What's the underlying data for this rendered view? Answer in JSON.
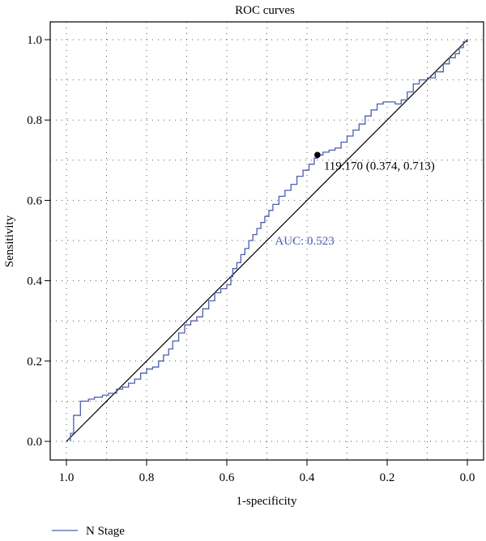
{
  "chart_data": {
    "type": "line",
    "title": "ROC curves",
    "xlabel": "1-specificity",
    "ylabel": "Sensitivity",
    "xlim": [
      1.0,
      0.0
    ],
    "ylim": [
      0.0,
      1.0
    ],
    "x_reversed": true,
    "grid": true,
    "x_ticks": [
      1.0,
      0.8,
      0.6,
      0.4,
      0.2,
      0.0
    ],
    "x_tick_labels": [
      "1.0",
      "0.8",
      "0.6",
      "0.4",
      "0.2",
      "0.0"
    ],
    "y_ticks": [
      0.0,
      0.2,
      0.4,
      0.6,
      0.8,
      1.0
    ],
    "y_tick_labels": [
      "0.0",
      "0.2",
      "0.4",
      "0.6",
      "0.8",
      "1.0"
    ],
    "legend": {
      "position": "bottom-left",
      "entries": [
        {
          "label": "N Stage",
          "color": "#4a5fae"
        }
      ]
    },
    "series": [
      {
        "name": "N Stage",
        "color": "#4a5fae",
        "x": [
          0.99,
          0.99,
          0.982,
          0.982,
          0.965,
          0.965,
          0.945,
          0.93,
          0.91,
          0.895,
          0.875,
          0.86,
          0.845,
          0.83,
          0.815,
          0.8,
          0.785,
          0.77,
          0.758,
          0.745,
          0.735,
          0.72,
          0.705,
          0.69,
          0.675,
          0.66,
          0.645,
          0.63,
          0.615,
          0.6,
          0.59,
          0.585,
          0.575,
          0.565,
          0.555,
          0.545,
          0.535,
          0.525,
          0.515,
          0.505,
          0.495,
          0.485,
          0.47,
          0.455,
          0.44,
          0.425,
          0.41,
          0.395,
          0.382,
          0.374,
          0.374,
          0.36,
          0.345,
          0.33,
          0.315,
          0.3,
          0.285,
          0.27,
          0.255,
          0.24,
          0.225,
          0.21,
          0.195,
          0.18,
          0.165,
          0.15,
          0.135,
          0.12,
          0.1,
          0.08,
          0.06,
          0.045,
          0.03,
          0.02,
          0.01,
          0.0
        ],
        "y": [
          0.0,
          0.02,
          0.02,
          0.065,
          0.075,
          0.1,
          0.105,
          0.11,
          0.115,
          0.12,
          0.13,
          0.135,
          0.145,
          0.155,
          0.17,
          0.18,
          0.185,
          0.2,
          0.215,
          0.23,
          0.25,
          0.27,
          0.29,
          0.3,
          0.31,
          0.33,
          0.35,
          0.37,
          0.38,
          0.39,
          0.41,
          0.43,
          0.445,
          0.465,
          0.48,
          0.5,
          0.515,
          0.53,
          0.545,
          0.56,
          0.575,
          0.59,
          0.61,
          0.625,
          0.64,
          0.66,
          0.675,
          0.69,
          0.705,
          0.713,
          0.713,
          0.72,
          0.725,
          0.73,
          0.745,
          0.76,
          0.775,
          0.79,
          0.81,
          0.825,
          0.84,
          0.845,
          0.845,
          0.84,
          0.85,
          0.87,
          0.89,
          0.9,
          0.905,
          0.92,
          0.94,
          0.955,
          0.965,
          0.98,
          0.995,
          1.0
        ]
      }
    ],
    "reference_line": {
      "from": [
        1.0,
        0.0
      ],
      "to": [
        0.0,
        1.0
      ],
      "color": "#000000"
    },
    "threshold_point": {
      "x": 0.374,
      "y": 0.713,
      "label": "119.170 (0.374, 0.713)"
    },
    "auc_label": {
      "text": "AUC: 0.523",
      "color": "#4a5fae",
      "x": 0.48,
      "y": 0.5
    }
  }
}
